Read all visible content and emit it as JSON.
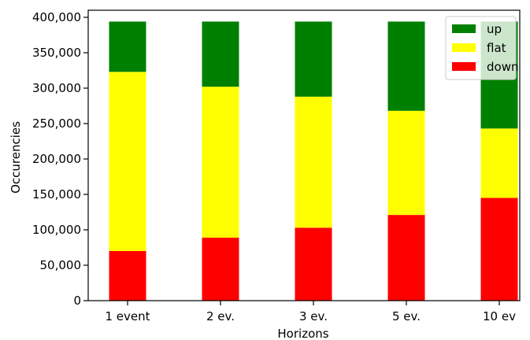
{
  "chart_data": {
    "type": "bar",
    "stacked": true,
    "categories": [
      "1 event",
      "2 ev.",
      "3 ev.",
      "5 ev.",
      "10 ev"
    ],
    "series": [
      {
        "name": "down",
        "color": "#ff0000",
        "values": [
          70000,
          89000,
          103000,
          121000,
          145000
        ]
      },
      {
        "name": "flat",
        "color": "#ffff00",
        "values": [
          253000,
          213000,
          185000,
          147000,
          98000
        ]
      },
      {
        "name": "up",
        "color": "#008000",
        "values": [
          71000,
          92000,
          106000,
          126000,
          151000
        ]
      }
    ],
    "title": "",
    "xlabel": "Horizons",
    "ylabel": "Occurencies",
    "ylim": [
      0,
      410000
    ],
    "yticks": [
      0,
      50000,
      100000,
      150000,
      200000,
      250000,
      300000,
      350000,
      400000
    ],
    "ytick_labels": [
      "0",
      "50,000",
      "100,000",
      "150,000",
      "200,000",
      "250,000",
      "300,000",
      "350,000",
      "400,000"
    ],
    "grid": false,
    "legend": {
      "placement": "top-right",
      "entries": [
        "up",
        "flat",
        "down"
      ]
    }
  }
}
